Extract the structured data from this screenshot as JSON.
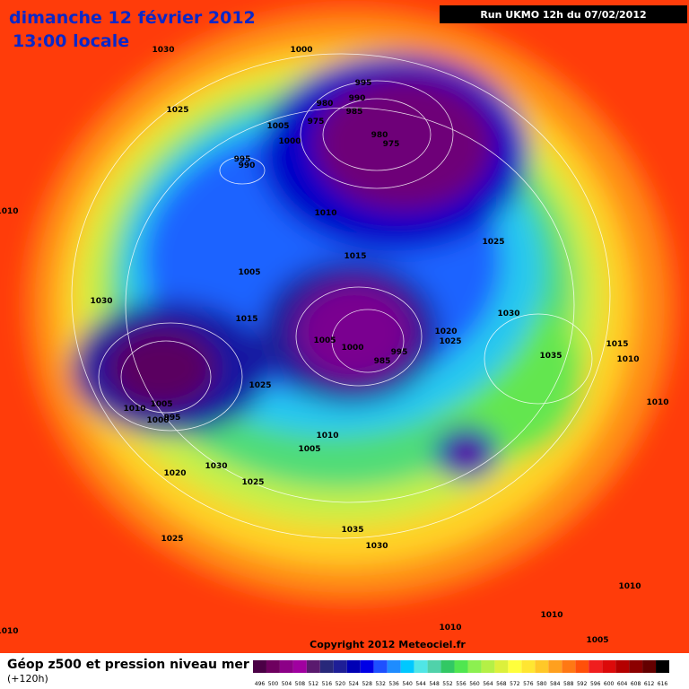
{
  "header": {
    "title": "dimanche 12 février 2012",
    "time": "13:00 locale",
    "run": "Run UKMO 12h du 07/02/2012"
  },
  "copyright": "Copyright 2012 Meteociel.fr",
  "footer": {
    "title": "Géop z500 et pression niveau mer",
    "lead": "(+120h)"
  },
  "isobar_labels": [
    1030,
    1000,
    1025,
    995,
    990,
    980,
    985,
    975,
    1005,
    1000,
    980,
    975,
    995,
    990,
    1010,
    1025,
    1015,
    1005,
    1030,
    1015,
    1030,
    1020,
    1025,
    1005,
    1000,
    995,
    985,
    1015,
    1035,
    1010,
    1010,
    1025,
    1005,
    1010,
    1000,
    995,
    1010,
    1005,
    1020,
    1030,
    1025,
    1035,
    1030,
    1025,
    1010,
    1010,
    1010,
    1005,
    1010,
    1010
  ],
  "legend": {
    "values": [
      496,
      500,
      504,
      508,
      512,
      516,
      520,
      524,
      528,
      532,
      536,
      540,
      544,
      548,
      552,
      556,
      560,
      564,
      568,
      572,
      576,
      580,
      584,
      588,
      592,
      596,
      600,
      604,
      608,
      612,
      616
    ],
    "colors": [
      "#4b0046",
      "#6e005f",
      "#8c0087",
      "#a000a0",
      "#5a1a6e",
      "#28287a",
      "#1e1e96",
      "#0000b4",
      "#0000e6",
      "#1e50ff",
      "#1e8cff",
      "#00c8ff",
      "#50e6e6",
      "#50d2aa",
      "#32c864",
      "#50e650",
      "#8cf050",
      "#b4f046",
      "#dcf03c",
      "#ffff3c",
      "#ffe632",
      "#ffc828",
      "#ffa01e",
      "#ff7814",
      "#ff500a",
      "#f01e1e",
      "#dc0a0a",
      "#b40000",
      "#8c0000",
      "#640000",
      "#000000"
    ]
  }
}
